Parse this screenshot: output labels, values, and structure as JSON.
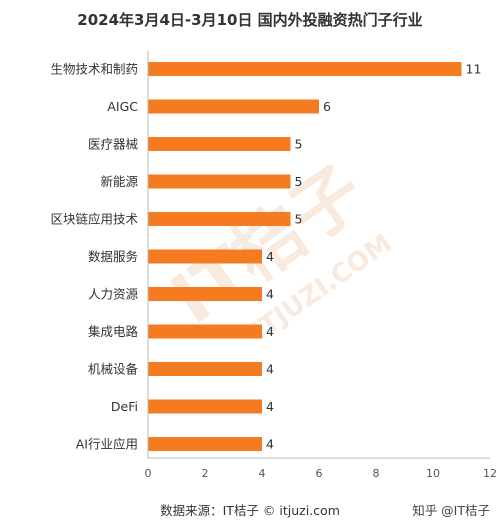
{
  "colors": {
    "bar": "#f47b20",
    "axis": "#bbbbbb",
    "text": "#333333",
    "watermark": "#f6dccb"
  },
  "source": "数据来源：IT桔子 © itjuzi.com",
  "credit": "知乎 @IT桔子",
  "watermark": {
    "logo": "IT桔子",
    "url": "ITJUZI.COM"
  },
  "chart_data": {
    "type": "bar",
    "orientation": "horizontal",
    "title": "2024年3月4日-3月10日 国内外投融资热门子行业",
    "categories": [
      "生物技术和制药",
      "AIGC",
      "医疗器械",
      "新能源",
      "区块链应用技术",
      "数据服务",
      "人力资源",
      "集成电路",
      "机械设备",
      "DeFi",
      "AI行业应用"
    ],
    "values": [
      11,
      6,
      5,
      5,
      5,
      4,
      4,
      4,
      4,
      4,
      4
    ],
    "xlim": [
      0,
      12
    ],
    "xticks": [
      0,
      2,
      4,
      6,
      8,
      10,
      12
    ],
    "grid": false,
    "data_labels": true
  }
}
